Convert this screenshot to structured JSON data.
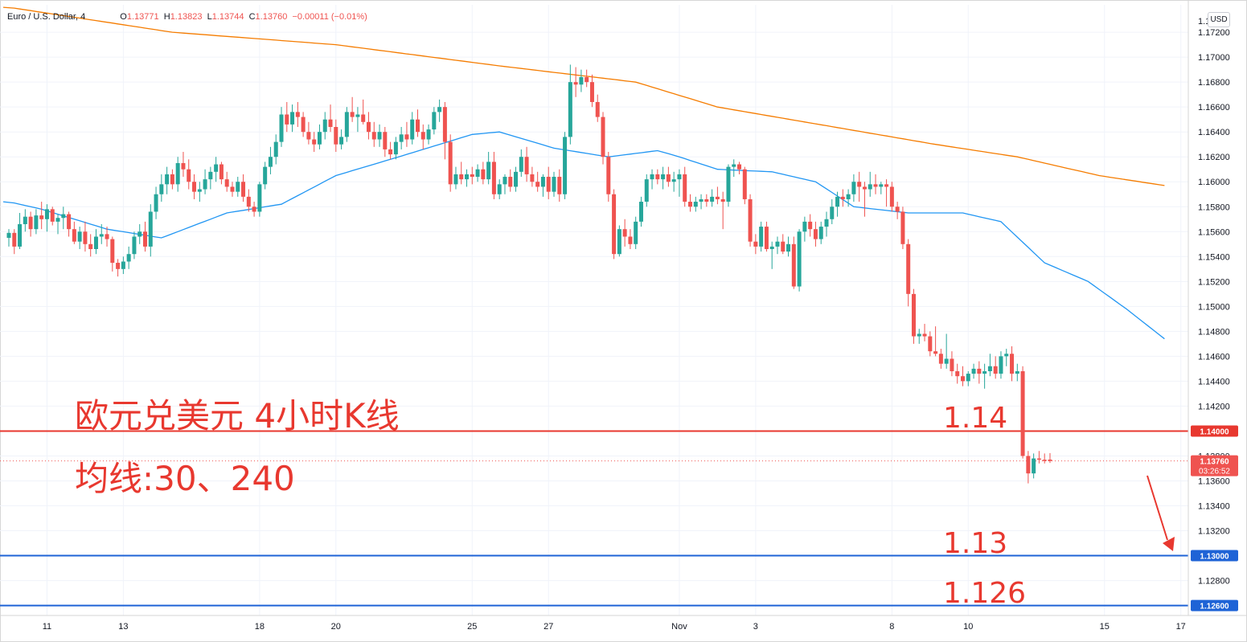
{
  "header": {
    "symbol": "Euro / U.S. Dollar, 4",
    "ohlc": [
      {
        "label": "O",
        "value": "1.13771"
      },
      {
        "label": "H",
        "value": "1.13823"
      },
      {
        "label": "L",
        "value": "1.13744"
      },
      {
        "label": "C",
        "value": "1.13760"
      }
    ],
    "change": "−0.00011 (−0.01%)",
    "currency": "USD"
  },
  "annotations": {
    "title": "欧元兑美元 4小时K线",
    "ma": "均线:30、240",
    "level_1_14": "1.14",
    "level_1_13": "1.13",
    "level_1_126": "1.126"
  },
  "colors": {
    "up": "#26a69a",
    "down": "#ef5350",
    "ma30": "#2196f3",
    "ma240": "#f57c00",
    "resistance": "#e8382f",
    "support": "#1e63d6"
  },
  "chart_data": {
    "type": "candlestick",
    "y_axis": {
      "min": 1.1252,
      "max": 1.1742,
      "ticks": [
        "1.17200",
        "1.17000",
        "1.16800",
        "1.16600",
        "1.16400",
        "1.16200",
        "1.16000",
        "1.15800",
        "1.15600",
        "1.15400",
        "1.15200",
        "1.15000",
        "1.14800",
        "1.14600",
        "1.14400",
        "1.14200",
        "1.13800",
        "1.13600",
        "1.13400",
        "1.13200",
        "1.12800"
      ],
      "tick_values": [
        1.172,
        1.17,
        1.168,
        1.166,
        1.164,
        1.162,
        1.16,
        1.158,
        1.156,
        1.154,
        1.152,
        1.15,
        1.148,
        1.146,
        1.144,
        1.142,
        1.138,
        1.136,
        1.134,
        1.132,
        1.128
      ]
    },
    "x_axis": {
      "labels": [
        "11",
        "13",
        "18",
        "20",
        "25",
        "27",
        "Nov",
        "3",
        "8",
        "10",
        "15",
        "17"
      ],
      "label_bars": [
        7,
        21,
        46,
        60,
        85,
        99,
        123,
        137,
        162,
        176,
        201,
        215
      ]
    },
    "bar_count": 212,
    "price_lines": [
      {
        "value": 1.14,
        "label": "1.14000",
        "color": "#e8382f"
      },
      {
        "value": 1.1376,
        "label": "1.13760",
        "sub": "03:26:52",
        "color": "#ef5350",
        "dotted": true
      },
      {
        "value": 1.13,
        "label": "1.13000",
        "color": "#1e63d6"
      },
      {
        "value": 1.126,
        "label": "1.12600",
        "color": "#1e63d6"
      }
    ],
    "ma30_anchors": [
      [
        0,
        1.1584
      ],
      [
        6,
        1.1578
      ],
      [
        18,
        1.1562
      ],
      [
        28,
        1.1555
      ],
      [
        40,
        1.1575
      ],
      [
        50,
        1.1582
      ],
      [
        60,
        1.1605
      ],
      [
        70,
        1.1618
      ],
      [
        85,
        1.1638
      ],
      [
        90,
        1.164
      ],
      [
        100,
        1.1627
      ],
      [
        110,
        1.162
      ],
      [
        119,
        1.1625
      ],
      [
        123,
        1.162
      ],
      [
        130,
        1.161
      ],
      [
        140,
        1.1608
      ],
      [
        148,
        1.16
      ],
      [
        155,
        1.158
      ],
      [
        165,
        1.1575
      ],
      [
        175,
        1.1575
      ],
      [
        182,
        1.1568
      ],
      [
        190,
        1.1535
      ],
      [
        198,
        1.152
      ],
      [
        205,
        1.1498
      ],
      [
        212,
        1.1474
      ]
    ],
    "ma240_anchors": [
      [
        0,
        1.174
      ],
      [
        30,
        1.172
      ],
      [
        60,
        1.171
      ],
      [
        90,
        1.1693
      ],
      [
        115,
        1.168
      ],
      [
        130,
        1.166
      ],
      [
        150,
        1.1645
      ],
      [
        170,
        1.163
      ],
      [
        185,
        1.162
      ],
      [
        200,
        1.1605
      ],
      [
        212,
        1.1597
      ]
    ],
    "candles": [
      [
        1.1555,
        1.1562,
        1.1548,
        1.1559
      ],
      [
        1.1559,
        1.1562,
        1.1542,
        1.1548
      ],
      [
        1.1548,
        1.1575,
        1.1546,
        1.1566
      ],
      [
        1.1566,
        1.1578,
        1.156,
        1.1572
      ],
      [
        1.1572,
        1.1576,
        1.1556,
        1.1562
      ],
      [
        1.1562,
        1.1578,
        1.1558,
        1.1573
      ],
      [
        1.1573,
        1.1584,
        1.1562,
        1.157
      ],
      [
        1.157,
        1.1582,
        1.156,
        1.1578
      ],
      [
        1.1578,
        1.158,
        1.1565,
        1.1568
      ],
      [
        1.1568,
        1.1574,
        1.1558,
        1.1571
      ],
      [
        1.1571,
        1.158,
        1.1562,
        1.1574
      ],
      [
        1.1574,
        1.1576,
        1.1556,
        1.1562
      ],
      [
        1.1562,
        1.1568,
        1.155,
        1.1552
      ],
      [
        1.1552,
        1.1564,
        1.1546,
        1.156
      ],
      [
        1.156,
        1.1568,
        1.1544,
        1.155
      ],
      [
        1.155,
        1.1558,
        1.154,
        1.1546
      ],
      [
        1.1546,
        1.1562,
        1.1542,
        1.1556
      ],
      [
        1.1556,
        1.1566,
        1.155,
        1.1558
      ],
      [
        1.1558,
        1.1564,
        1.1548,
        1.1554
      ],
      [
        1.1554,
        1.1556,
        1.1528,
        1.1535
      ],
      [
        1.1535,
        1.1538,
        1.1524,
        1.153
      ],
      [
        1.153,
        1.154,
        1.1526,
        1.1536
      ],
      [
        1.1536,
        1.1548,
        1.153,
        1.1542
      ],
      [
        1.1542,
        1.156,
        1.1538,
        1.1556
      ],
      [
        1.1556,
        1.1566,
        1.155,
        1.156
      ],
      [
        1.156,
        1.1568,
        1.1544,
        1.1548
      ],
      [
        1.1548,
        1.1582,
        1.154,
        1.1576
      ],
      [
        1.1576,
        1.1596,
        1.157,
        1.159
      ],
      [
        1.159,
        1.1606,
        1.1584,
        1.1598
      ],
      [
        1.1598,
        1.1612,
        1.159,
        1.1606
      ],
      [
        1.1606,
        1.161,
        1.1594,
        1.1598
      ],
      [
        1.1598,
        1.162,
        1.1592,
        1.1615
      ],
      [
        1.1615,
        1.1624,
        1.1604,
        1.161
      ],
      [
        1.161,
        1.1618,
        1.1594,
        1.16
      ],
      [
        1.16,
        1.1606,
        1.1586,
        1.1592
      ],
      [
        1.1592,
        1.16,
        1.1584,
        1.1594
      ],
      [
        1.1594,
        1.161,
        1.159,
        1.1602
      ],
      [
        1.1602,
        1.1612,
        1.1594,
        1.1608
      ],
      [
        1.1608,
        1.162,
        1.16,
        1.1614
      ],
      [
        1.1614,
        1.1616,
        1.1598,
        1.1602
      ],
      [
        1.1602,
        1.1608,
        1.1592,
        1.1596
      ],
      [
        1.1596,
        1.16,
        1.1588,
        1.1592
      ],
      [
        1.1592,
        1.1604,
        1.1588,
        1.16
      ],
      [
        1.16,
        1.1606,
        1.1584,
        1.1588
      ],
      [
        1.1588,
        1.1594,
        1.1576,
        1.158
      ],
      [
        1.158,
        1.1584,
        1.1572,
        1.1576
      ],
      [
        1.1576,
        1.16,
        1.1572,
        1.1598
      ],
      [
        1.1598,
        1.1616,
        1.1594,
        1.1612
      ],
      [
        1.1612,
        1.1628,
        1.1606,
        1.162
      ],
      [
        1.162,
        1.1638,
        1.1614,
        1.1632
      ],
      [
        1.1632,
        1.166,
        1.1628,
        1.1654
      ],
      [
        1.1654,
        1.1664,
        1.164,
        1.1646
      ],
      [
        1.1646,
        1.1662,
        1.164,
        1.1656
      ],
      [
        1.1656,
        1.1664,
        1.1644,
        1.1652
      ],
      [
        1.1652,
        1.1656,
        1.1636,
        1.164
      ],
      [
        1.164,
        1.1648,
        1.163,
        1.1634
      ],
      [
        1.1634,
        1.164,
        1.1624,
        1.163
      ],
      [
        1.163,
        1.1646,
        1.1626,
        1.164
      ],
      [
        1.164,
        1.1656,
        1.1634,
        1.165
      ],
      [
        1.165,
        1.1662,
        1.164,
        1.1644
      ],
      [
        1.1644,
        1.165,
        1.1624,
        1.163
      ],
      [
        1.163,
        1.1642,
        1.1626,
        1.1636
      ],
      [
        1.1636,
        1.166,
        1.1632,
        1.1656
      ],
      [
        1.1656,
        1.1668,
        1.1648,
        1.1652
      ],
      [
        1.1652,
        1.166,
        1.164,
        1.1654
      ],
      [
        1.1654,
        1.1666,
        1.1646,
        1.1648
      ],
      [
        1.1648,
        1.1656,
        1.1634,
        1.164
      ],
      [
        1.164,
        1.1648,
        1.1628,
        1.1634
      ],
      [
        1.1634,
        1.1646,
        1.1628,
        1.164
      ],
      [
        1.164,
        1.1644,
        1.162,
        1.1626
      ],
      [
        1.1626,
        1.1632,
        1.1618,
        1.1622
      ],
      [
        1.1622,
        1.1636,
        1.1618,
        1.1632
      ],
      [
        1.1632,
        1.1644,
        1.1626,
        1.1638
      ],
      [
        1.1638,
        1.1648,
        1.1628,
        1.1634
      ],
      [
        1.1634,
        1.1656,
        1.163,
        1.165
      ],
      [
        1.165,
        1.1658,
        1.1636,
        1.164
      ],
      [
        1.164,
        1.1646,
        1.1626,
        1.1634
      ],
      [
        1.1634,
        1.1646,
        1.163,
        1.1642
      ],
      [
        1.1642,
        1.166,
        1.1638,
        1.1656
      ],
      [
        1.1656,
        1.1666,
        1.1648,
        1.166
      ],
      [
        1.166,
        1.1664,
        1.1618,
        1.1632
      ],
      [
        1.1632,
        1.1638,
        1.1592,
        1.1598
      ],
      [
        1.1598,
        1.1612,
        1.1594,
        1.1606
      ],
      [
        1.1606,
        1.1616,
        1.1598,
        1.1602
      ],
      [
        1.1602,
        1.161,
        1.1596,
        1.1606
      ],
      [
        1.1606,
        1.1612,
        1.1598,
        1.1604
      ],
      [
        1.1604,
        1.1614,
        1.16,
        1.161
      ],
      [
        1.161,
        1.1616,
        1.1598,
        1.1602
      ],
      [
        1.1602,
        1.1624,
        1.1598,
        1.1616
      ],
      [
        1.1616,
        1.1624,
        1.1586,
        1.159
      ],
      [
        1.159,
        1.1602,
        1.1586,
        1.1598
      ],
      [
        1.1598,
        1.1606,
        1.159,
        1.1604
      ],
      [
        1.1604,
        1.161,
        1.1592,
        1.1596
      ],
      [
        1.1596,
        1.1612,
        1.1592,
        1.1608
      ],
      [
        1.1608,
        1.1626,
        1.1604,
        1.162
      ],
      [
        1.162,
        1.1628,
        1.16,
        1.1606
      ],
      [
        1.1606,
        1.1612,
        1.1596,
        1.16
      ],
      [
        1.16,
        1.1608,
        1.1592,
        1.1596
      ],
      [
        1.1596,
        1.1606,
        1.1588,
        1.1604
      ],
      [
        1.1604,
        1.1612,
        1.1586,
        1.1592
      ],
      [
        1.1592,
        1.1608,
        1.1588,
        1.1604
      ],
      [
        1.1604,
        1.161,
        1.1584,
        1.159
      ],
      [
        1.159,
        1.164,
        1.1586,
        1.1636
      ],
      [
        1.1636,
        1.1694,
        1.163,
        1.168
      ],
      [
        1.168,
        1.1692,
        1.1668,
        1.1678
      ],
      [
        1.1678,
        1.169,
        1.1672,
        1.1684
      ],
      [
        1.1684,
        1.169,
        1.1676,
        1.168
      ],
      [
        1.168,
        1.1686,
        1.166,
        1.1664
      ],
      [
        1.1664,
        1.167,
        1.1648,
        1.1652
      ],
      [
        1.1652,
        1.1656,
        1.1614,
        1.162
      ],
      [
        1.162,
        1.1624,
        1.1584,
        1.159
      ],
      [
        1.159,
        1.1594,
        1.1538,
        1.1542
      ],
      [
        1.1542,
        1.1565,
        1.154,
        1.1562
      ],
      [
        1.1562,
        1.157,
        1.1548,
        1.1556
      ],
      [
        1.1556,
        1.1562,
        1.1546,
        1.155
      ],
      [
        1.155,
        1.1572,
        1.1546,
        1.1568
      ],
      [
        1.1568,
        1.1588,
        1.1564,
        1.1584
      ],
      [
        1.1584,
        1.1606,
        1.158,
        1.1602
      ],
      [
        1.1602,
        1.161,
        1.1594,
        1.1606
      ],
      [
        1.1606,
        1.161,
        1.1598,
        1.1602
      ],
      [
        1.1602,
        1.1612,
        1.1594,
        1.1606
      ],
      [
        1.1606,
        1.1612,
        1.1596,
        1.16
      ],
      [
        1.16,
        1.1608,
        1.1592,
        1.1602
      ],
      [
        1.1602,
        1.161,
        1.1588,
        1.1606
      ],
      [
        1.1606,
        1.1612,
        1.158,
        1.1584
      ],
      [
        1.1584,
        1.159,
        1.1576,
        1.158
      ],
      [
        1.158,
        1.1588,
        1.1576,
        1.1584
      ],
      [
        1.1584,
        1.159,
        1.1578,
        1.1586
      ],
      [
        1.1586,
        1.159,
        1.158,
        1.1584
      ],
      [
        1.1584,
        1.1594,
        1.158,
        1.1588
      ],
      [
        1.1588,
        1.1596,
        1.1582,
        1.1586
      ],
      [
        1.1586,
        1.1592,
        1.1562,
        1.1584
      ],
      [
        1.1584,
        1.1614,
        1.158,
        1.1612
      ],
      [
        1.1612,
        1.1618,
        1.1604,
        1.1614
      ],
      [
        1.1614,
        1.1616,
        1.1606,
        1.161
      ],
      [
        1.161,
        1.1612,
        1.1582,
        1.1586
      ],
      [
        1.1586,
        1.159,
        1.1548,
        1.1552
      ],
      [
        1.1552,
        1.1558,
        1.1542,
        1.1548
      ],
      [
        1.1548,
        1.1568,
        1.1544,
        1.1564
      ],
      [
        1.1564,
        1.1568,
        1.1544,
        1.1546
      ],
      [
        1.1546,
        1.1552,
        1.153,
        1.1548
      ],
      [
        1.1548,
        1.1556,
        1.1542,
        1.1552
      ],
      [
        1.1552,
        1.1558,
        1.1542,
        1.1544
      ],
      [
        1.1544,
        1.1556,
        1.154,
        1.155
      ],
      [
        1.155,
        1.1556,
        1.1514,
        1.1516
      ],
      [
        1.1516,
        1.1562,
        1.1512,
        1.156
      ],
      [
        1.156,
        1.1572,
        1.1552,
        1.1568
      ],
      [
        1.1568,
        1.1574,
        1.1556,
        1.1562
      ],
      [
        1.1562,
        1.1568,
        1.1548,
        1.1554
      ],
      [
        1.1554,
        1.1568,
        1.155,
        1.1564
      ],
      [
        1.1564,
        1.1576,
        1.1556,
        1.157
      ],
      [
        1.157,
        1.1586,
        1.1566,
        1.158
      ],
      [
        1.158,
        1.1592,
        1.1572,
        1.1588
      ],
      [
        1.1588,
        1.1594,
        1.158,
        1.1586
      ],
      [
        1.1586,
        1.1594,
        1.158,
        1.159
      ],
      [
        1.159,
        1.1606,
        1.1584,
        1.16
      ],
      [
        1.16,
        1.1608,
        1.1584,
        1.1596
      ],
      [
        1.1596,
        1.16,
        1.1572,
        1.1594
      ],
      [
        1.1594,
        1.1608,
        1.1588,
        1.1598
      ],
      [
        1.1598,
        1.1606,
        1.159,
        1.1596
      ],
      [
        1.1596,
        1.16,
        1.159,
        1.1598
      ],
      [
        1.1598,
        1.1602,
        1.158,
        1.1596
      ],
      [
        1.1596,
        1.16,
        1.1576,
        1.158
      ],
      [
        1.158,
        1.1584,
        1.157,
        1.1576
      ],
      [
        1.1576,
        1.158,
        1.1546,
        1.155
      ],
      [
        1.155,
        1.1554,
        1.15,
        1.151
      ],
      [
        1.151,
        1.1514,
        1.147,
        1.1476
      ],
      [
        1.1476,
        1.1482,
        1.147,
        1.1478
      ],
      [
        1.1478,
        1.1486,
        1.1472,
        1.1476
      ],
      [
        1.1476,
        1.148,
        1.146,
        1.1464
      ],
      [
        1.1464,
        1.1484,
        1.146,
        1.1462
      ],
      [
        1.1462,
        1.1466,
        1.145,
        1.1454
      ],
      [
        1.1454,
        1.1478,
        1.145,
        1.1458
      ],
      [
        1.1458,
        1.1464,
        1.1444,
        1.1448
      ],
      [
        1.1448,
        1.1454,
        1.1438,
        1.1444
      ],
      [
        1.1444,
        1.1452,
        1.1436,
        1.144
      ],
      [
        1.144,
        1.1448,
        1.1436,
        1.1446
      ],
      [
        1.1446,
        1.1454,
        1.1442,
        1.145
      ],
      [
        1.145,
        1.1456,
        1.1438,
        1.1446
      ],
      [
        1.1446,
        1.1454,
        1.1434,
        1.1448
      ],
      [
        1.1448,
        1.1462,
        1.1444,
        1.1452
      ],
      [
        1.1452,
        1.146,
        1.1442,
        1.1446
      ],
      [
        1.1446,
        1.1464,
        1.1442,
        1.146
      ],
      [
        1.146,
        1.1466,
        1.1452,
        1.1462
      ],
      [
        1.1462,
        1.1468,
        1.144,
        1.1446
      ],
      [
        1.1446,
        1.1454,
        1.144,
        1.1448
      ],
      [
        1.1448,
        1.1452,
        1.1378,
        1.138
      ],
      [
        1.138,
        1.1384,
        1.1358,
        1.1366
      ],
      [
        1.1366,
        1.1382,
        1.1362,
        1.1378
      ],
      [
        1.1378,
        1.1384,
        1.1374,
        1.1377
      ],
      [
        1.1377,
        1.1382,
        1.1374,
        1.1376
      ],
      [
        1.13771,
        1.13823,
        1.13744,
        1.1376
      ]
    ]
  }
}
